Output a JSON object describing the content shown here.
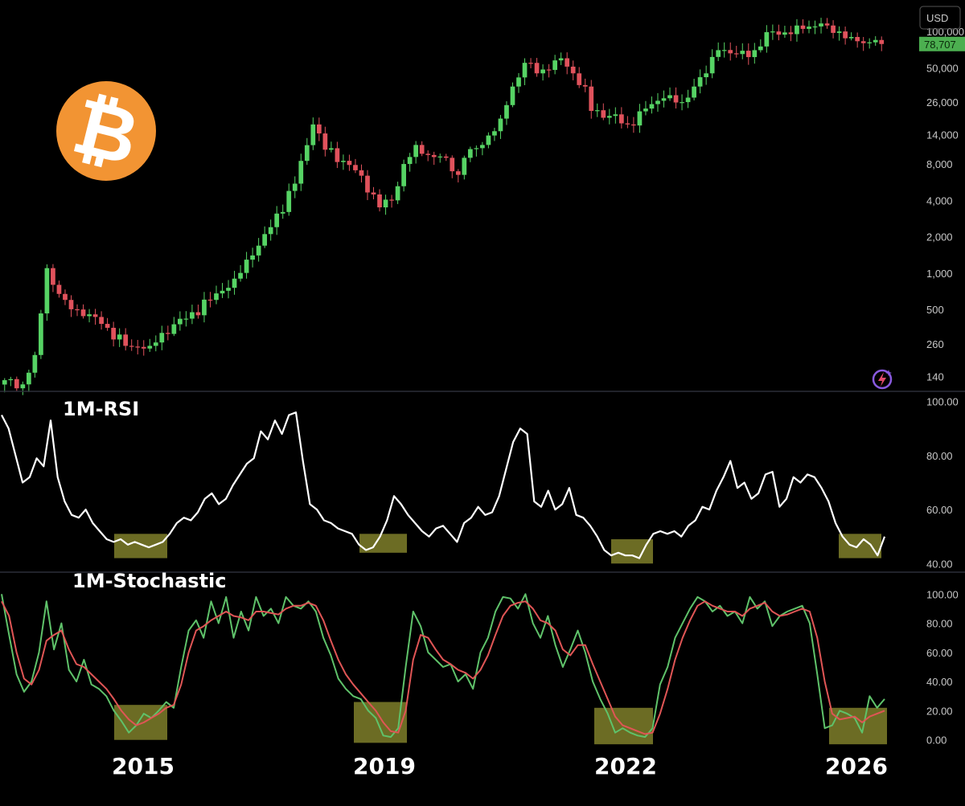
{
  "colors": {
    "up": "#56d364",
    "down": "#e0525c",
    "rsi": "#ffffff",
    "stoch_k": "#5fc26a",
    "stoch_d": "#e05555",
    "highlight": "#8a8a2e",
    "bitcoin": "#f29433",
    "badge": "#4caf50"
  },
  "logo": {
    "icon": "bitcoin-logo-icon",
    "symbol": "₿"
  },
  "watermark_icon": "lightning-spark-icon",
  "price_panel": {
    "currency": "USD",
    "current_price": "78,707",
    "tick_labels": [
      "100,000",
      "50,000",
      "26,000",
      "14,000",
      "8,000",
      "4,000",
      "2,000",
      "1,000",
      "500",
      "260",
      "140"
    ]
  },
  "rsi_panel": {
    "title": "1M-RSI",
    "tick_labels": [
      "100.00",
      "80.00",
      "60.00",
      "40.00"
    ]
  },
  "stoch_panel": {
    "title": "1M-Stochastic",
    "tick_labels": [
      "100.00",
      "80.00",
      "60.00",
      "40.00",
      "20.00",
      "0.00"
    ]
  },
  "year_labels": [
    "2015",
    "2019",
    "2022",
    "2026"
  ],
  "chart_data": [
    {
      "type": "line",
      "subtype": "candlestick",
      "title": "",
      "yscale": "log",
      "ylim": [
        110,
        130000
      ],
      "yticks": [
        100000,
        50000,
        26000,
        14000,
        8000,
        4000,
        2000,
        1000,
        500,
        260,
        140
      ],
      "price_anchors": [
        [
          0,
          130
        ],
        [
          3,
          120
        ],
        [
          5,
          210
        ],
        [
          7,
          1100
        ],
        [
          8,
          800
        ],
        [
          10,
          600
        ],
        [
          12,
          500
        ],
        [
          16,
          380
        ],
        [
          20,
          250
        ],
        [
          24,
          250
        ],
        [
          26,
          320
        ],
        [
          30,
          420
        ],
        [
          34,
          600
        ],
        [
          38,
          900
        ],
        [
          41,
          1400
        ],
        [
          44,
          2400
        ],
        [
          48,
          5500
        ],
        [
          51,
          17000
        ],
        [
          53,
          10500
        ],
        [
          56,
          8500
        ],
        [
          59,
          6400
        ],
        [
          62,
          3500
        ],
        [
          64,
          4000
        ],
        [
          66,
          8000
        ],
        [
          68,
          11500
        ],
        [
          70,
          9500
        ],
        [
          73,
          9000
        ],
        [
          75,
          6500
        ],
        [
          76,
          9000
        ],
        [
          79,
          11500
        ],
        [
          82,
          19000
        ],
        [
          84,
          35000
        ],
        [
          86,
          55000
        ],
        [
          88,
          45000
        ],
        [
          90,
          48000
        ],
        [
          92,
          60000
        ],
        [
          94,
          45000
        ],
        [
          96,
          35000
        ],
        [
          97,
          22000
        ],
        [
          100,
          20000
        ],
        [
          103,
          17000
        ],
        [
          106,
          23000
        ],
        [
          109,
          28000
        ],
        [
          112,
          26000
        ],
        [
          114,
          35000
        ],
        [
          116,
          45000
        ],
        [
          118,
          70000
        ],
        [
          121,
          65000
        ],
        [
          124,
          70000
        ],
        [
          127,
          100000
        ],
        [
          130,
          95000
        ],
        [
          132,
          105000
        ],
        [
          134,
          110000
        ],
        [
          136,
          112000
        ],
        [
          138,
          100000
        ],
        [
          140,
          90000
        ],
        [
          142,
          80000
        ],
        [
          144,
          85000
        ],
        [
          145,
          78707
        ]
      ],
      "last_value": 78707
    },
    {
      "type": "line",
      "title": "1M-RSI",
      "ylim": [
        38,
        102
      ],
      "yticks": [
        100,
        80,
        60,
        40
      ],
      "values": [
        95,
        90,
        80,
        70,
        72,
        79,
        76,
        93,
        72,
        63,
        58,
        57,
        60,
        55,
        52,
        49,
        48,
        49,
        47,
        48,
        47,
        46,
        47,
        48,
        51,
        55,
        57,
        56,
        59,
        64,
        66,
        62,
        64,
        69,
        73,
        77,
        79,
        89,
        86,
        93,
        88,
        95,
        96,
        78,
        62,
        60,
        56,
        55,
        53,
        52,
        51,
        47,
        45,
        46,
        50,
        56,
        65,
        62,
        58,
        55,
        52,
        50,
        53,
        54,
        51,
        48,
        55,
        57,
        61,
        58,
        59,
        65,
        75,
        85,
        90,
        88,
        63,
        61,
        67,
        60,
        62,
        68,
        58,
        57,
        54,
        50,
        45,
        43,
        44,
        43,
        43,
        42,
        47,
        51,
        52,
        51,
        52,
        50,
        54,
        56,
        61,
        60,
        67,
        72,
        78,
        68,
        70,
        64,
        66,
        73,
        74,
        61,
        64,
        72,
        70,
        73,
        72,
        68,
        63,
        55,
        50,
        47,
        46,
        49,
        47,
        43,
        50
      ]
    },
    {
      "type": "line",
      "title": "1M-Stochastic",
      "ylim": [
        -4,
        104
      ],
      "yticks": [
        100,
        80,
        60,
        40,
        20,
        0
      ],
      "series": [
        {
          "values": [
            100,
            72,
            45,
            33,
            40,
            60,
            95,
            62,
            80,
            48,
            40,
            55,
            38,
            35,
            30,
            20,
            13,
            5,
            10,
            18,
            15,
            20,
            26,
            22,
            50,
            75,
            82,
            70,
            95,
            80,
            98,
            70,
            88,
            75,
            98,
            85,
            90,
            80,
            98,
            92,
            90,
            95,
            88,
            70,
            58,
            42,
            35,
            30,
            28,
            20,
            15,
            3,
            2,
            8,
            50,
            88,
            78,
            60,
            55,
            50,
            52,
            40,
            45,
            35,
            60,
            70,
            88,
            98,
            97,
            90,
            100,
            80,
            70,
            85,
            65,
            50,
            62,
            75,
            60,
            40,
            28,
            18,
            5,
            8,
            5,
            3,
            2,
            8,
            38,
            50,
            70,
            80,
            90,
            98,
            95,
            88,
            92,
            85,
            88,
            80,
            98,
            90,
            95,
            78,
            85,
            88,
            90,
            92,
            80,
            45,
            8,
            10,
            20,
            18,
            15,
            5,
            30,
            22,
            28
          ]
        },
        {
          "values": [
            95,
            85,
            60,
            42,
            38,
            48,
            68,
            72,
            75,
            62,
            52,
            50,
            45,
            40,
            35,
            28,
            20,
            14,
            10,
            12,
            15,
            18,
            22,
            24,
            38,
            60,
            75,
            78,
            82,
            85,
            88,
            85,
            84,
            82,
            88,
            88,
            87,
            86,
            90,
            92,
            92,
            94,
            92,
            82,
            68,
            55,
            45,
            38,
            32,
            26,
            20,
            12,
            6,
            5,
            20,
            55,
            72,
            70,
            62,
            55,
            52,
            48,
            46,
            42,
            48,
            58,
            72,
            85,
            92,
            94,
            95,
            90,
            82,
            80,
            75,
            62,
            58,
            65,
            65,
            52,
            40,
            28,
            16,
            10,
            8,
            6,
            4,
            5,
            18,
            35,
            55,
            70,
            82,
            92,
            95,
            92,
            90,
            88,
            88,
            85,
            90,
            92,
            94,
            88,
            85,
            86,
            88,
            90,
            88,
            70,
            40,
            18,
            14,
            15,
            16,
            12,
            16,
            18,
            20
          ]
        }
      ]
    }
  ]
}
